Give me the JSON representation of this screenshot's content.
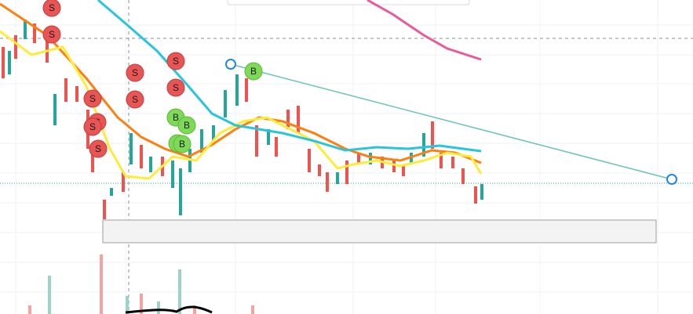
{
  "markers": [
    "S",
    "S",
    "S",
    "S",
    "S",
    "S",
    "S",
    "S",
    "S",
    "S",
    "B",
    "B",
    "B",
    "B",
    "B"
  ]
}
